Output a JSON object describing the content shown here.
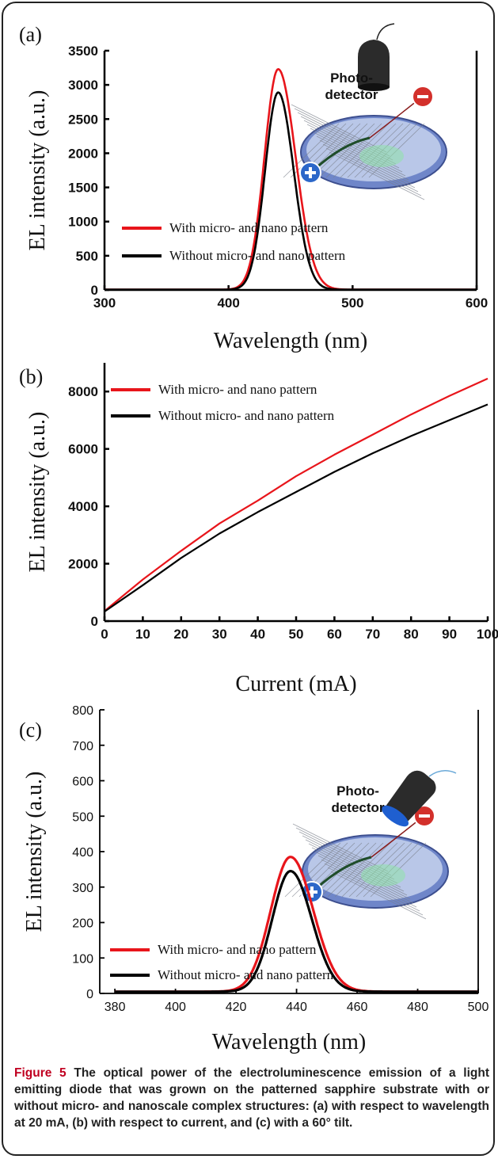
{
  "chart_data": [
    {
      "type": "line",
      "panel_label": "(a)",
      "xlabel": "Wavelength (nm)",
      "ylabel": "EL intensity (a.u.)",
      "xlim": [
        300,
        600
      ],
      "ylim": [
        0,
        3500
      ],
      "xticks": [
        300,
        400,
        500,
        600
      ],
      "yticks": [
        0,
        500,
        1000,
        1500,
        2000,
        2500,
        3000,
        3500
      ],
      "legend_position": "lower-left",
      "inset_label": [
        "Photo-",
        "detector"
      ],
      "series": [
        {
          "name": "With micro- and nano pattern",
          "color": "#e8151b",
          "peak_x": 440,
          "peak_y": 3230,
          "sigma_left": 11,
          "sigma_right": 14,
          "baseline": 5,
          "x_range": [
            300,
            600
          ]
        },
        {
          "name": "Without micro- and nano pattern",
          "color": "#000000",
          "peak_x": 440,
          "peak_y": 2890,
          "sigma_left": 10.5,
          "sigma_right": 12.5,
          "baseline": 5,
          "x_range": [
            300,
            600
          ]
        }
      ]
    },
    {
      "type": "line",
      "panel_label": "(b)",
      "xlabel": "Current (mA)",
      "ylabel": "EL intensity (a.u.)",
      "xlim": [
        0,
        100
      ],
      "ylim": [
        0,
        9000
      ],
      "xticks": [
        0,
        10,
        20,
        30,
        40,
        50,
        60,
        70,
        80,
        90,
        100
      ],
      "yticks": [
        0,
        2000,
        4000,
        6000,
        8000
      ],
      "legend_position": "top-left",
      "series": [
        {
          "name": "With micro- and nano pattern",
          "color": "#e8151b",
          "x": [
            0,
            10,
            20,
            30,
            40,
            50,
            60,
            70,
            80,
            90,
            100
          ],
          "y": [
            350,
            1450,
            2450,
            3400,
            4200,
            5050,
            5800,
            6500,
            7200,
            7850,
            8450
          ]
        },
        {
          "name": "Without micro- and nano pattern",
          "color": "#000000",
          "x": [
            0,
            10,
            20,
            30,
            40,
            50,
            60,
            70,
            80,
            90,
            100
          ],
          "y": [
            330,
            1250,
            2200,
            3050,
            3800,
            4500,
            5200,
            5850,
            6450,
            7000,
            7550
          ]
        }
      ]
    },
    {
      "type": "line",
      "panel_label": "(c)",
      "xlabel": "Wavelength (nm)",
      "ylabel": "EL intensity (a.u.)",
      "xlim": [
        375,
        500
      ],
      "ylim": [
        0,
        800
      ],
      "xticks": [
        380,
        400,
        420,
        440,
        460,
        480,
        500
      ],
      "yticks": [
        0,
        100,
        200,
        300,
        400,
        500,
        600,
        700,
        800
      ],
      "legend_position": "lower-left",
      "inset_label": [
        "Photo-",
        "detector"
      ],
      "series": [
        {
          "name": "With micro- and nano pattern",
          "color": "#e8151b",
          "peak_x": 438,
          "peak_y": 385,
          "sigma_left": 6.5,
          "sigma_right": 7.5,
          "baseline": 5,
          "x_range": [
            380,
            500
          ]
        },
        {
          "name": "Without micro- and nano pattern",
          "color": "#000000",
          "peak_x": 438,
          "peak_y": 345,
          "sigma_left": 6,
          "sigma_right": 7,
          "baseline": 5,
          "x_range": [
            380,
            500
          ]
        }
      ]
    }
  ],
  "caption": {
    "lead": "Figure 5",
    "text": " The optical power of the electroluminescence emission of a light emitting diode that was grown on the patterned sapphire substrate with or without micro- and nanoscale complex structures: (a) with respect to wavelength at 20 mA, (b) with respect to current, and (c) with a 60° tilt."
  },
  "colors": {
    "with_pattern": "#e8151b",
    "without_pattern": "#000000",
    "caption_lead": "#c00020"
  }
}
